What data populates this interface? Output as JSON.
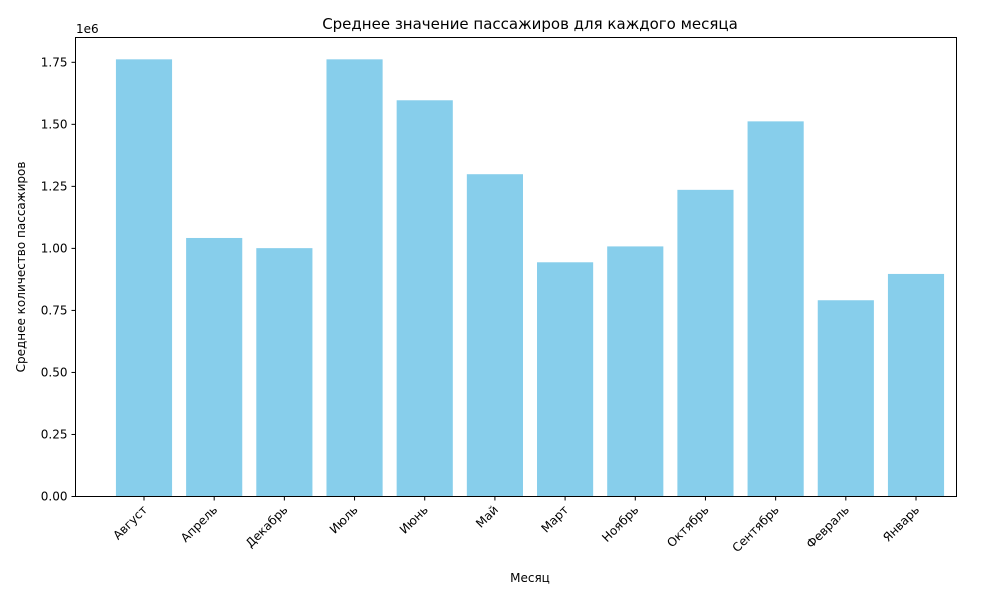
{
  "chart_data": {
    "type": "bar",
    "title": "Среднее значение пассажиров для каждого месяца",
    "xlabel": "Месяц",
    "ylabel": "Среднее количество пассажиров",
    "y_offset_label": "1e6",
    "categories": [
      "Август",
      "Апрель",
      "Декабрь",
      "Июль",
      "Июнь",
      "Май",
      "Март",
      "Ноябрь",
      "Октябрь",
      "Сентябрь",
      "Февраль",
      "Январь"
    ],
    "values": [
      1762000,
      1042000,
      1001000,
      1762000,
      1597000,
      1299000,
      944000,
      1008000,
      1236000,
      1512000,
      791000,
      897000
    ],
    "ylim": [
      0,
      1850000
    ],
    "y_ticks": [
      0,
      250000,
      500000,
      750000,
      1000000,
      1250000,
      1500000,
      1750000
    ],
    "y_tick_labels": [
      "0.00",
      "0.25",
      "0.50",
      "0.75",
      "1.00",
      "1.25",
      "1.50",
      "1.75"
    ],
    "x_tick_rotation": 45,
    "grid": false,
    "legend": "none",
    "bar_color": "#87ceeb"
  }
}
